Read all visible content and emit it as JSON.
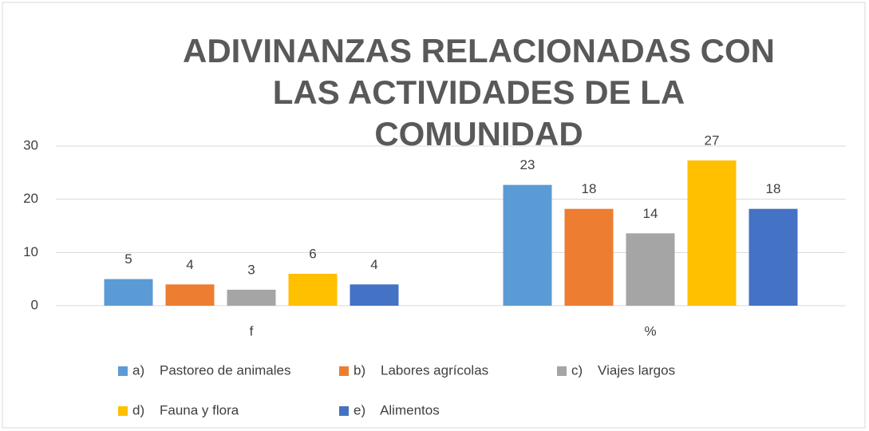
{
  "chart_data": {
    "type": "bar",
    "title": "ADIVINANZAS RELACIONADAS CON LAS ACTIVIDADES DE LA COMUNIDAD",
    "categories": [
      "f",
      "%"
    ],
    "series": [
      {
        "name": "a)    Pastoreo de animales",
        "color": "#5b9bd5",
        "values": [
          5,
          22.7
        ],
        "value_labels": [
          "5",
          "23"
        ]
      },
      {
        "name": "b)    Labores agrícolas",
        "color": "#ed7d31",
        "values": [
          4,
          18.2
        ],
        "value_labels": [
          "4",
          "18"
        ]
      },
      {
        "name": "c)    Viajes largos",
        "color": "#a5a5a5",
        "values": [
          3,
          13.6
        ],
        "value_labels": [
          "3",
          "14"
        ]
      },
      {
        "name": "d)    Fauna y flora",
        "color": "#ffc000",
        "values": [
          6,
          27.3
        ],
        "value_labels": [
          "6",
          "27"
        ]
      },
      {
        "name": "e)    Alimentos",
        "color": "#4472c4",
        "values": [
          4,
          18.2
        ],
        "value_labels": [
          "4",
          "18"
        ]
      }
    ],
    "ylim": [
      0,
      30
    ],
    "yticks": [
      0,
      10,
      20,
      30
    ],
    "grid": true,
    "legend": "bottom"
  }
}
